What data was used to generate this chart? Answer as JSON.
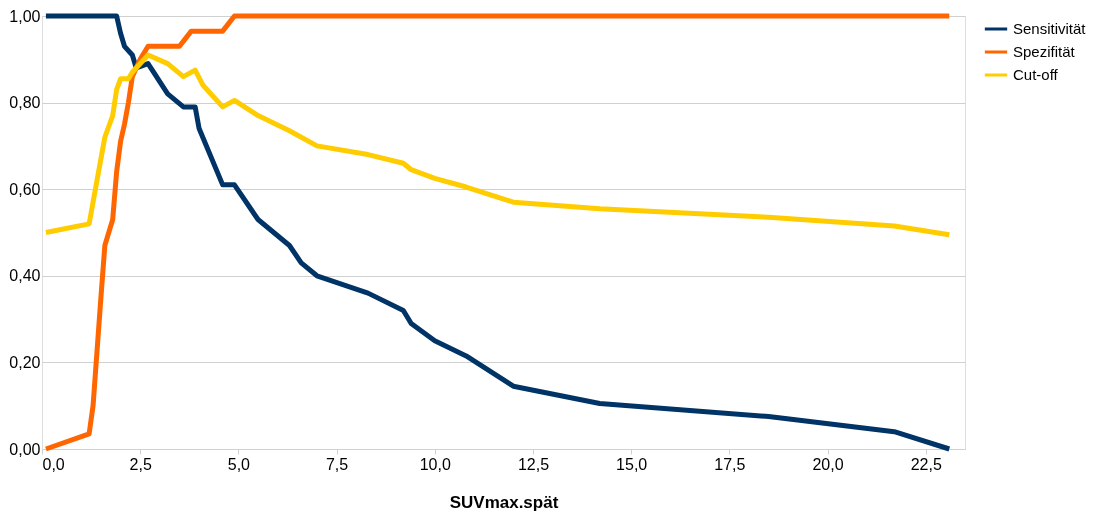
{
  "chart_data": {
    "type": "line",
    "xlabel": "SUVmax.spät",
    "xlim": [
      0,
      23.5
    ],
    "ylim": [
      0,
      1
    ],
    "xticks": [
      {
        "value": 0,
        "label": "0,0"
      },
      {
        "value": 2.5,
        "label": "2,5"
      },
      {
        "value": 5,
        "label": "5,0"
      },
      {
        "value": 7.5,
        "label": "7,5"
      },
      {
        "value": 10,
        "label": "10,0"
      },
      {
        "value": 12.5,
        "label": "12,5"
      },
      {
        "value": 15,
        "label": "15,0"
      },
      {
        "value": 17.5,
        "label": "17,5"
      },
      {
        "value": 20,
        "label": "20,0"
      },
      {
        "value": 22.5,
        "label": "22,5"
      }
    ],
    "yticks": [
      {
        "value": 0,
        "label": "0,00"
      },
      {
        "value": 0.2,
        "label": "0,20"
      },
      {
        "value": 0.4,
        "label": "0,40"
      },
      {
        "value": 0.6,
        "label": "0,60"
      },
      {
        "value": 0.8,
        "label": "0,80"
      },
      {
        "value": 1,
        "label": "1,00"
      }
    ],
    "grid": "y",
    "legend": "right",
    "marker": "none",
    "line_style": "solid",
    "series": [
      {
        "name": "Sensitivität",
        "color": "#003366",
        "x": [
          0.1,
          1.9,
          2.0,
          2.1,
          2.3,
          2.4,
          2.7,
          3.2,
          3.6,
          3.9,
          4.0,
          4.6,
          4.9,
          5.5,
          6.3,
          6.6,
          7.0,
          8.3,
          9.2,
          9.4,
          10.0,
          10.8,
          12.0,
          14.2,
          18.5,
          21.7,
          23.1
        ],
        "values": [
          1.0,
          1.0,
          0.96,
          0.93,
          0.91,
          0.88,
          0.89,
          0.82,
          0.79,
          0.79,
          0.74,
          0.61,
          0.61,
          0.53,
          0.47,
          0.43,
          0.4,
          0.36,
          0.32,
          0.29,
          0.25,
          0.215,
          0.145,
          0.105,
          0.075,
          0.04,
          0.0
        ]
      },
      {
        "name": "Spezifität",
        "color": "#ff6600",
        "x": [
          0.1,
          1.2,
          1.3,
          1.5,
          1.6,
          1.8,
          1.9,
          2.0,
          2.1,
          2.2,
          2.3,
          2.5,
          2.7,
          3.5,
          3.8,
          4.6,
          4.9,
          23.1
        ],
        "values": [
          0.0,
          0.035,
          0.1,
          0.35,
          0.47,
          0.53,
          0.64,
          0.71,
          0.75,
          0.8,
          0.86,
          0.9,
          0.93,
          0.93,
          0.965,
          0.965,
          1.0,
          1.0
        ]
      },
      {
        "name": "Cut-off",
        "color": "#ffcc00",
        "x": [
          0.1,
          1.2,
          1.4,
          1.6,
          1.8,
          1.9,
          2.0,
          2.2,
          2.3,
          2.7,
          3.2,
          3.6,
          3.9,
          4.1,
          4.6,
          4.9,
          5.5,
          6.3,
          7.0,
          8.3,
          9.2,
          9.4,
          10.0,
          10.8,
          12.0,
          14.2,
          18.5,
          21.7,
          23.1
        ],
        "values": [
          0.5,
          0.52,
          0.62,
          0.72,
          0.77,
          0.83,
          0.855,
          0.855,
          0.87,
          0.91,
          0.89,
          0.86,
          0.875,
          0.84,
          0.79,
          0.805,
          0.77,
          0.735,
          0.7,
          0.68,
          0.66,
          0.645,
          0.625,
          0.605,
          0.57,
          0.555,
          0.535,
          0.515,
          0.495
        ]
      }
    ]
  }
}
